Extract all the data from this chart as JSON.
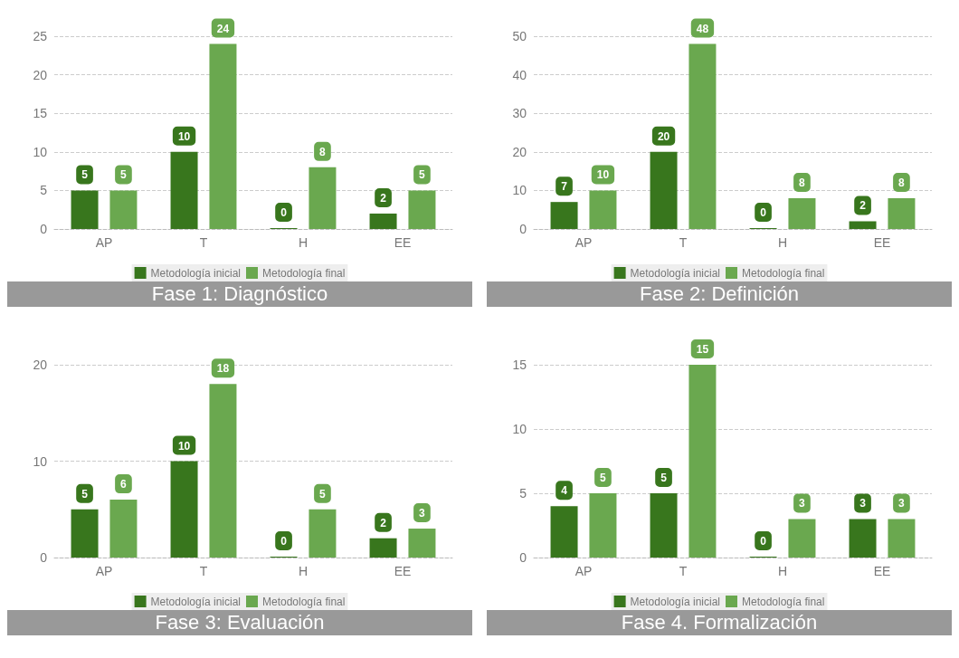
{
  "chart_data": [
    {
      "type": "bar",
      "title": "Fase 1: Diagnóstico",
      "categories": [
        "AP",
        "T",
        "H",
        "EE"
      ],
      "series": [
        {
          "name": "Metodología inicial",
          "color": "#38761d",
          "values": [
            5,
            10,
            0,
            2
          ]
        },
        {
          "name": "Metodología final",
          "color": "#6aa84f",
          "values": [
            5,
            24,
            8,
            5
          ]
        }
      ],
      "ylim": [
        0,
        25
      ],
      "yticks": [
        0,
        5,
        10,
        15,
        20,
        25
      ],
      "grid": "y",
      "legend": "bottom",
      "data_labels": true
    },
    {
      "type": "bar",
      "title": "Fase 2: Definición",
      "categories": [
        "AP",
        "T",
        "H",
        "EE"
      ],
      "series": [
        {
          "name": "Metodología inicial",
          "color": "#38761d",
          "values": [
            7,
            20,
            0,
            2
          ]
        },
        {
          "name": "Metodología final",
          "color": "#6aa84f",
          "values": [
            10,
            48,
            8,
            8
          ]
        }
      ],
      "ylim": [
        0,
        50
      ],
      "yticks": [
        0,
        10,
        20,
        30,
        40,
        50
      ],
      "grid": "y",
      "legend": "bottom",
      "data_labels": true
    },
    {
      "type": "bar",
      "title": "Fase 3: Evaluación",
      "categories": [
        "AP",
        "T",
        "H",
        "EE"
      ],
      "series": [
        {
          "name": "Metodología inicial",
          "color": "#38761d",
          "values": [
            5,
            10,
            0,
            2
          ]
        },
        {
          "name": "Metodología final",
          "color": "#6aa84f",
          "values": [
            6,
            18,
            5,
            3
          ]
        }
      ],
      "ylim": [
        0,
        20
      ],
      "yticks": [
        0,
        10,
        20
      ],
      "grid": "y",
      "legend": "bottom",
      "data_labels": true
    },
    {
      "type": "bar",
      "title": "Fase 4. Formalización",
      "categories": [
        "AP",
        "T",
        "H",
        "EE"
      ],
      "series": [
        {
          "name": "Metodología inicial",
          "color": "#38761d",
          "values": [
            4,
            5,
            0,
            3
          ]
        },
        {
          "name": "Metodología final",
          "color": "#6aa84f",
          "values": [
            5,
            15,
            3,
            3
          ]
        }
      ],
      "ylim": [
        0,
        15
      ],
      "yticks": [
        0,
        5,
        10,
        15
      ],
      "grid": "y",
      "legend": "bottom",
      "data_labels": true
    }
  ]
}
